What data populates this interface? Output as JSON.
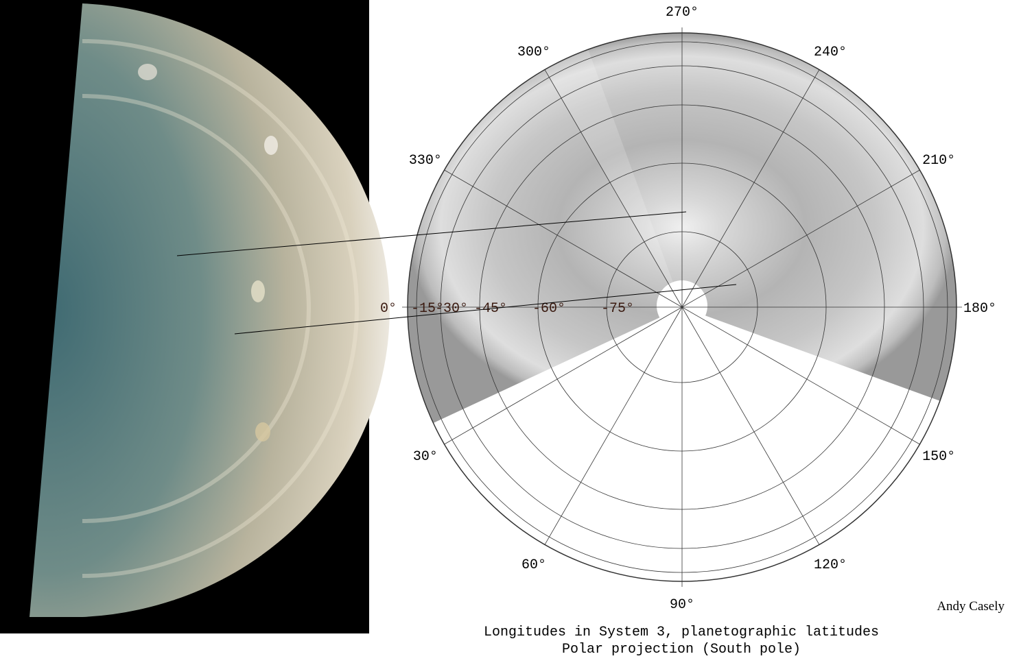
{
  "photo": {
    "description_icon": "jupiter-south-pole-photo"
  },
  "map": {
    "longitude_labels": [
      {
        "deg": 270,
        "label": "270°"
      },
      {
        "deg": 240,
        "label": "240°"
      },
      {
        "deg": 210,
        "label": "210°"
      },
      {
        "deg": 180,
        "label": "180°"
      },
      {
        "deg": 150,
        "label": "150°"
      },
      {
        "deg": 120,
        "label": "120°"
      },
      {
        "deg": 90,
        "label": "90°"
      },
      {
        "deg": 60,
        "label": "60°"
      },
      {
        "deg": 30,
        "label": "30°"
      },
      {
        "deg": 330,
        "label": "330°"
      },
      {
        "deg": 300,
        "label": "300°"
      }
    ],
    "latitude_labels": [
      {
        "deg": 0,
        "label": "0°"
      },
      {
        "deg": -15,
        "label": "-15°"
      },
      {
        "deg": -30,
        "label": "-30°"
      },
      {
        "deg": -45,
        "label": "-45°"
      },
      {
        "deg": -60,
        "label": "-60°"
      },
      {
        "deg": -75,
        "label": "-75°"
      }
    ],
    "spoke_interval_deg": 30,
    "coverage_longitude_range": [
      160,
      385
    ]
  },
  "caption": {
    "line1": "Longitudes in System 3, planetographic latitudes",
    "line2": "Polar projection (South pole)"
  },
  "credit": "Andy Casely"
}
